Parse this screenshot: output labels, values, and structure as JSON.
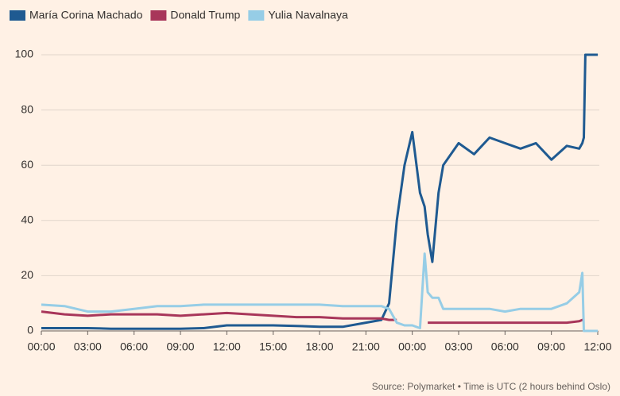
{
  "chart_data": {
    "type": "line",
    "source": "Source: Polymarket • Time is UTC (2 hours behind Oslo)",
    "x": [
      0,
      1.5,
      3,
      4.5,
      6,
      7.5,
      9,
      10.5,
      12,
      13.5,
      15,
      16.5,
      18,
      19.5,
      21,
      22,
      22.5,
      23,
      23.5,
      24,
      24.5,
      24.8,
      25,
      25.3,
      25.7,
      26,
      27,
      28,
      29,
      30,
      31,
      32,
      33,
      34,
      34.8,
      35,
      35.1,
      35.2,
      36
    ],
    "series": [
      {
        "name": "María Corina Machado",
        "color": "#1f5a91",
        "values": [
          1,
          1,
          1,
          0.8,
          0.8,
          0.8,
          0.8,
          1,
          2,
          2,
          2,
          1.8,
          1.5,
          1.5,
          3,
          4,
          10,
          40,
          60,
          72,
          50,
          45,
          35,
          25,
          50,
          60,
          68,
          64,
          70,
          68,
          66,
          68,
          62,
          67,
          66,
          68,
          70,
          100,
          100
        ]
      },
      {
        "name": "Donald Trump",
        "color": "#a8365a",
        "values": [
          7,
          6,
          5.5,
          6,
          6,
          6,
          5.5,
          6,
          6.5,
          6,
          5.5,
          5,
          5,
          4.5,
          4.5,
          4.5,
          4,
          4,
          null,
          null,
          null,
          null,
          3,
          3,
          3,
          3,
          3,
          3,
          3,
          3,
          3,
          3,
          3,
          3,
          3.5,
          4,
          4,
          null,
          null
        ]
      },
      {
        "name": "Yulia Navalnaya",
        "color": "#96cde6",
        "values": [
          9.5,
          9,
          7,
          7,
          8,
          9,
          9,
          9.5,
          9.5,
          9.5,
          9.5,
          9.5,
          9.5,
          9,
          9,
          9,
          8,
          3,
          2,
          2,
          1,
          28,
          14,
          12,
          12,
          8,
          8,
          8,
          8,
          7,
          8,
          8,
          8,
          10,
          14,
          21,
          0,
          0,
          0
        ]
      }
    ],
    "xlim": [
      0,
      36
    ],
    "xticks": [
      {
        "value": 0,
        "label": "00:00"
      },
      {
        "value": 3,
        "label": "03:00"
      },
      {
        "value": 6,
        "label": "06:00"
      },
      {
        "value": 9,
        "label": "09:00"
      },
      {
        "value": 12,
        "label": "12:00"
      },
      {
        "value": 15,
        "label": "15:00"
      },
      {
        "value": 18,
        "label": "18:00"
      },
      {
        "value": 21,
        "label": "21:00"
      },
      {
        "value": 24,
        "label": "00:00"
      },
      {
        "value": 27,
        "label": "03:00"
      },
      {
        "value": 30,
        "label": "06:00"
      },
      {
        "value": 33,
        "label": "09:00"
      },
      {
        "value": 36,
        "label": "12:00"
      }
    ],
    "ylim": [
      0,
      100
    ],
    "yticks": [
      0,
      20,
      40,
      60,
      80,
      100
    ],
    "grid": true
  }
}
